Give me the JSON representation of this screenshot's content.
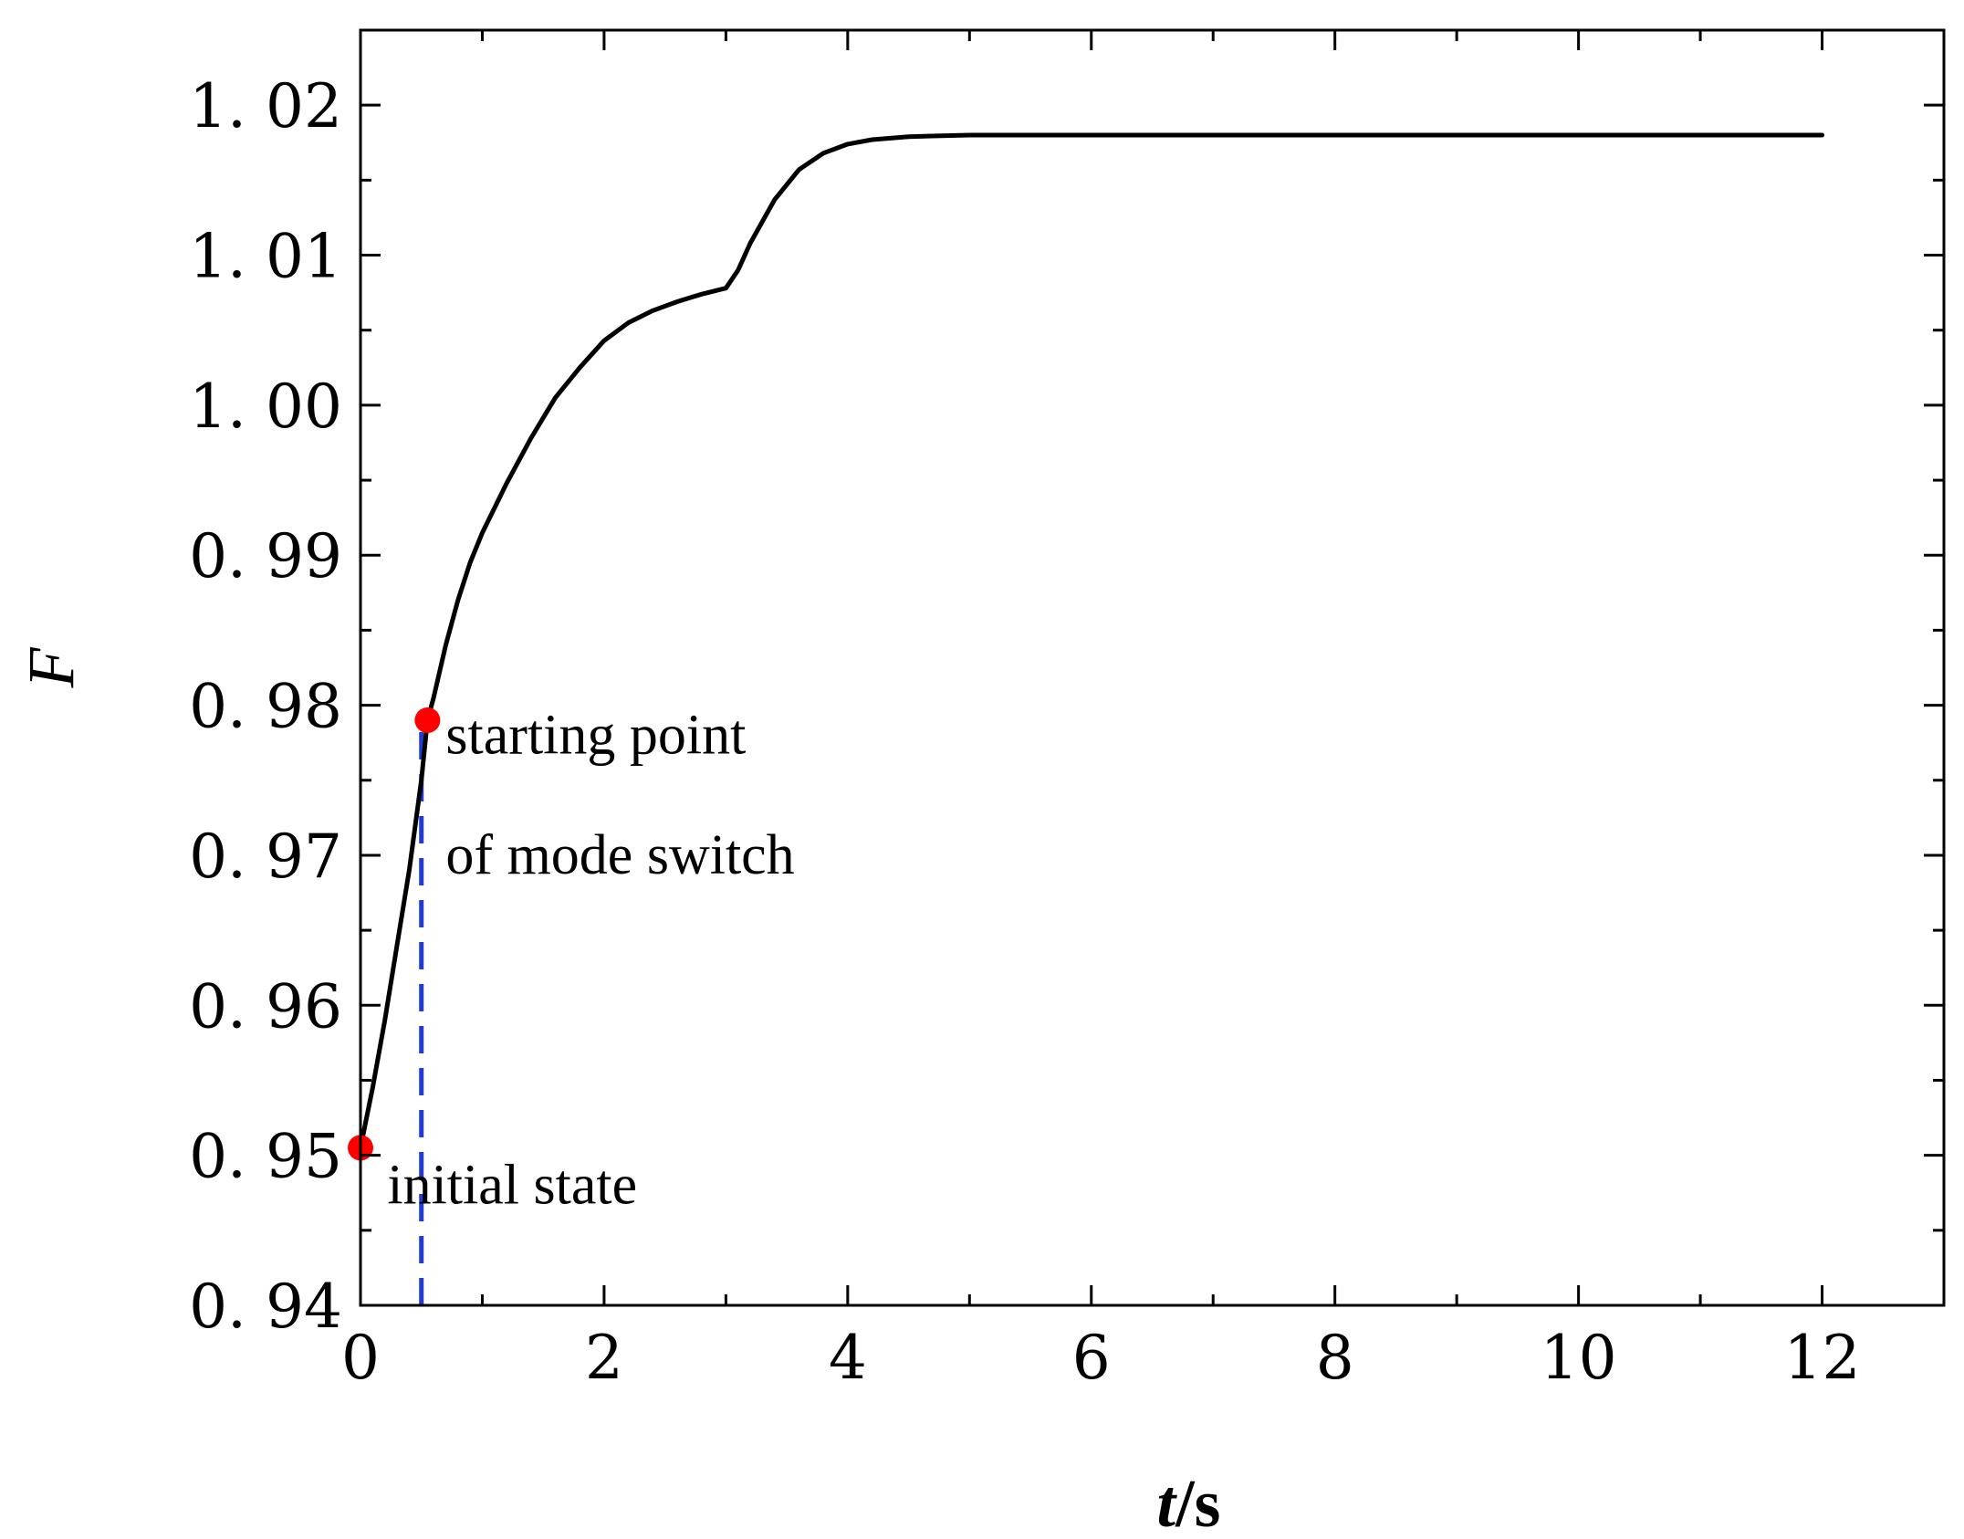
{
  "chart_data": {
    "type": "line",
    "title": "",
    "xlabel": "t/s",
    "xlabel_italic_part": "t",
    "xlabel_rest": "/s",
    "ylabel": "F",
    "xlim": [
      0,
      13
    ],
    "ylim": [
      0.94,
      1.025
    ],
    "x_ticks": [
      0,
      2,
      4,
      6,
      8,
      10,
      12
    ],
    "x_tick_labels": [
      "0",
      "2",
      "4",
      "6",
      "8",
      "10",
      "12"
    ],
    "y_ticks": [
      0.94,
      0.95,
      0.96,
      0.97,
      0.98,
      0.99,
      1.0,
      1.01,
      1.02
    ],
    "y_tick_labels": [
      "0. 94",
      "0. 95",
      "0. 96",
      "0. 97",
      "0. 98",
      "0. 99",
      "1. 00",
      "1. 01",
      "1. 02"
    ],
    "grid": false,
    "legend": "none",
    "series": [
      {
        "color": "#000000",
        "x": [
          0,
          0.1,
          0.2,
          0.3,
          0.4,
          0.5,
          0.55,
          0.6,
          0.7,
          0.8,
          0.9,
          1.0,
          1.2,
          1.4,
          1.6,
          1.8,
          2.0,
          2.2,
          2.4,
          2.6,
          2.8,
          2.95,
          3.0,
          3.1,
          3.2,
          3.4,
          3.6,
          3.8,
          4.0,
          4.2,
          4.5,
          5.0,
          5.5,
          6.0,
          7.0,
          8.0,
          9.0,
          10.0,
          11.0,
          12.0
        ],
        "y": [
          0.9505,
          0.9545,
          0.959,
          0.964,
          0.969,
          0.975,
          0.979,
          0.9805,
          0.984,
          0.987,
          0.9895,
          0.9915,
          0.9948,
          0.9978,
          1.0005,
          1.0025,
          1.0043,
          1.0055,
          1.0063,
          1.0069,
          1.0074,
          1.0077,
          1.0078,
          1.009,
          1.0108,
          1.0137,
          1.0157,
          1.0168,
          1.0174,
          1.0177,
          1.0179,
          1.018,
          1.018,
          1.018,
          1.018,
          1.018,
          1.018,
          1.018,
          1.018,
          1.018
        ]
      }
    ],
    "reference_line": {
      "x": 0.5,
      "color": "#1f3bd6",
      "style": "dashed"
    },
    "points": [
      {
        "x": 0,
        "y": 0.9505,
        "color": "#ff0000"
      },
      {
        "x": 0.55,
        "y": 0.979,
        "color": "#ff0000"
      }
    ],
    "annotations": [
      {
        "text": "starting point",
        "x": 0.7,
        "y": 0.978
      },
      {
        "text": "of mode switch",
        "x": 0.7,
        "y": 0.97
      },
      {
        "text": "initial state",
        "x": 0.22,
        "y": 0.948
      }
    ]
  }
}
